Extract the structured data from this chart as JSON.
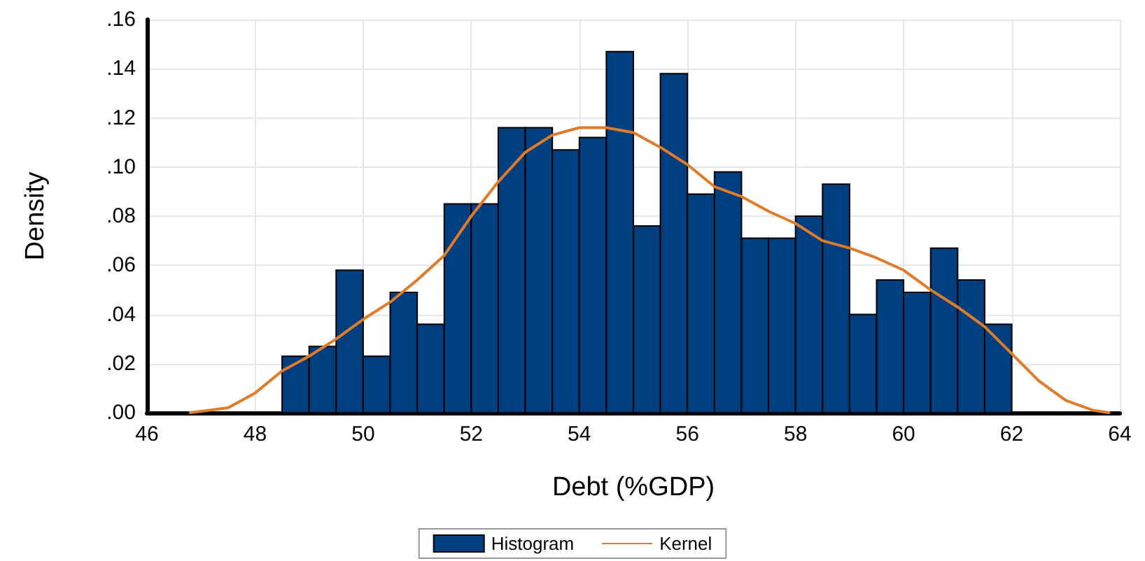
{
  "chart_data": {
    "type": "histogram",
    "xlabel": "Debt (%GDP)",
    "ylabel": "Density",
    "xlim": [
      46,
      64
    ],
    "xticks": [
      46,
      48,
      50,
      52,
      54,
      56,
      58,
      60,
      62,
      64
    ],
    "ylim": [
      0,
      0.16
    ],
    "yticks": [
      {
        "value": 0,
        "label": ".00"
      },
      {
        "value": 0.02,
        "label": ".02"
      },
      {
        "value": 0.04,
        "label": ".04"
      },
      {
        "value": 0.06,
        "label": ".06"
      },
      {
        "value": 0.08,
        "label": ".08"
      },
      {
        "value": 0.1,
        "label": ".10"
      },
      {
        "value": 0.12,
        "label": ".12"
      },
      {
        "value": 0.14,
        "label": ".14"
      },
      {
        "value": 0.16,
        "label": ".16"
      }
    ],
    "grid": true,
    "legend": "bottom",
    "series": [
      {
        "name": "Histogram",
        "color": "#003f7f",
        "bins": [
          48.5,
          49,
          49.5,
          50,
          50.5,
          51,
          51.5,
          52,
          52.5,
          53,
          53.5,
          54,
          54.5,
          55,
          55.5,
          56,
          56.5,
          57,
          57.5,
          58,
          58.5,
          59,
          59.5,
          60,
          60.5,
          61,
          61.5,
          62
        ],
        "values": [
          0.023,
          0.027,
          0.058,
          0.023,
          0.049,
          0.036,
          0.085,
          0.085,
          0.116,
          0.116,
          0.107,
          0.112,
          0.147,
          0.076,
          0.138,
          0.089,
          0.098,
          0.071,
          0.071,
          0.08,
          0.093,
          0.04,
          0.054,
          0.049,
          0.067,
          0.054,
          0.036
        ]
      },
      {
        "type": "line",
        "name": "Kernel",
        "color": "#e07b2a",
        "marker": "none",
        "x": [
          46.8,
          47.5,
          48,
          48.5,
          49,
          49.5,
          50,
          50.5,
          51,
          51.5,
          52,
          52.5,
          53,
          53.5,
          54,
          54.5,
          55,
          55.5,
          56,
          56.5,
          57,
          57.5,
          58,
          58.5,
          59,
          59.5,
          60,
          60.5,
          61,
          61.5,
          62,
          62.5,
          63,
          63.5,
          63.8
        ],
        "values": [
          0,
          0.002,
          0.008,
          0.017,
          0.023,
          0.03,
          0.038,
          0.045,
          0.054,
          0.064,
          0.08,
          0.094,
          0.106,
          0.113,
          0.116,
          0.116,
          0.114,
          0.108,
          0.101,
          0.092,
          0.088,
          0.082,
          0.077,
          0.07,
          0.067,
          0.063,
          0.058,
          0.05,
          0.043,
          0.035,
          0.024,
          0.013,
          0.005,
          0.001,
          0
        ]
      }
    ]
  }
}
